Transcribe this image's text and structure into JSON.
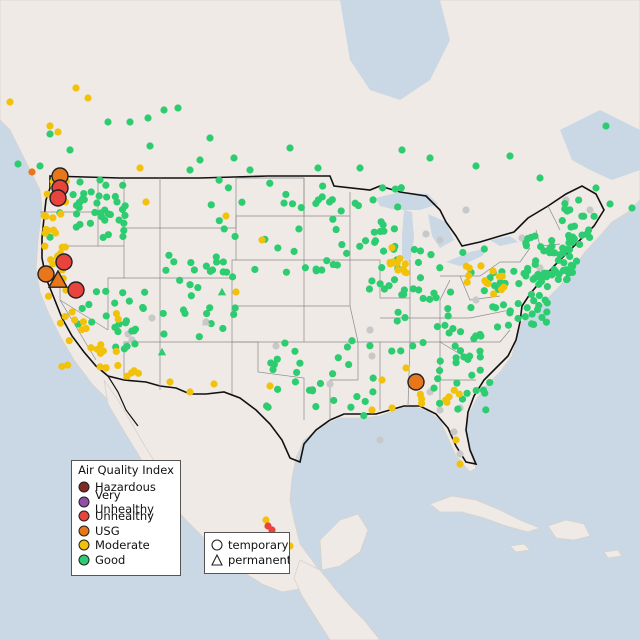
{
  "legend": {
    "title": "Air Quality Index",
    "categories": [
      {
        "label": "Hazardous",
        "color": "#7e2b22"
      },
      {
        "label": "Very Unhealthy",
        "color": "#8f4fa6"
      },
      {
        "label": "Unhealthy",
        "color": "#e8433c"
      },
      {
        "label": "USG",
        "color": "#e8761a"
      },
      {
        "label": "Moderate",
        "color": "#f2c20a"
      },
      {
        "label": "Good",
        "color": "#2ecc71"
      }
    ]
  },
  "type_legend": {
    "items": [
      {
        "label": "temporary",
        "icon": "circle-icon"
      },
      {
        "label": "permanent",
        "icon": "triangle-icon"
      }
    ]
  },
  "colors": {
    "water": "#c9d8e4",
    "land": "#efeae6",
    "no_data": "#c8c8c8"
  }
}
